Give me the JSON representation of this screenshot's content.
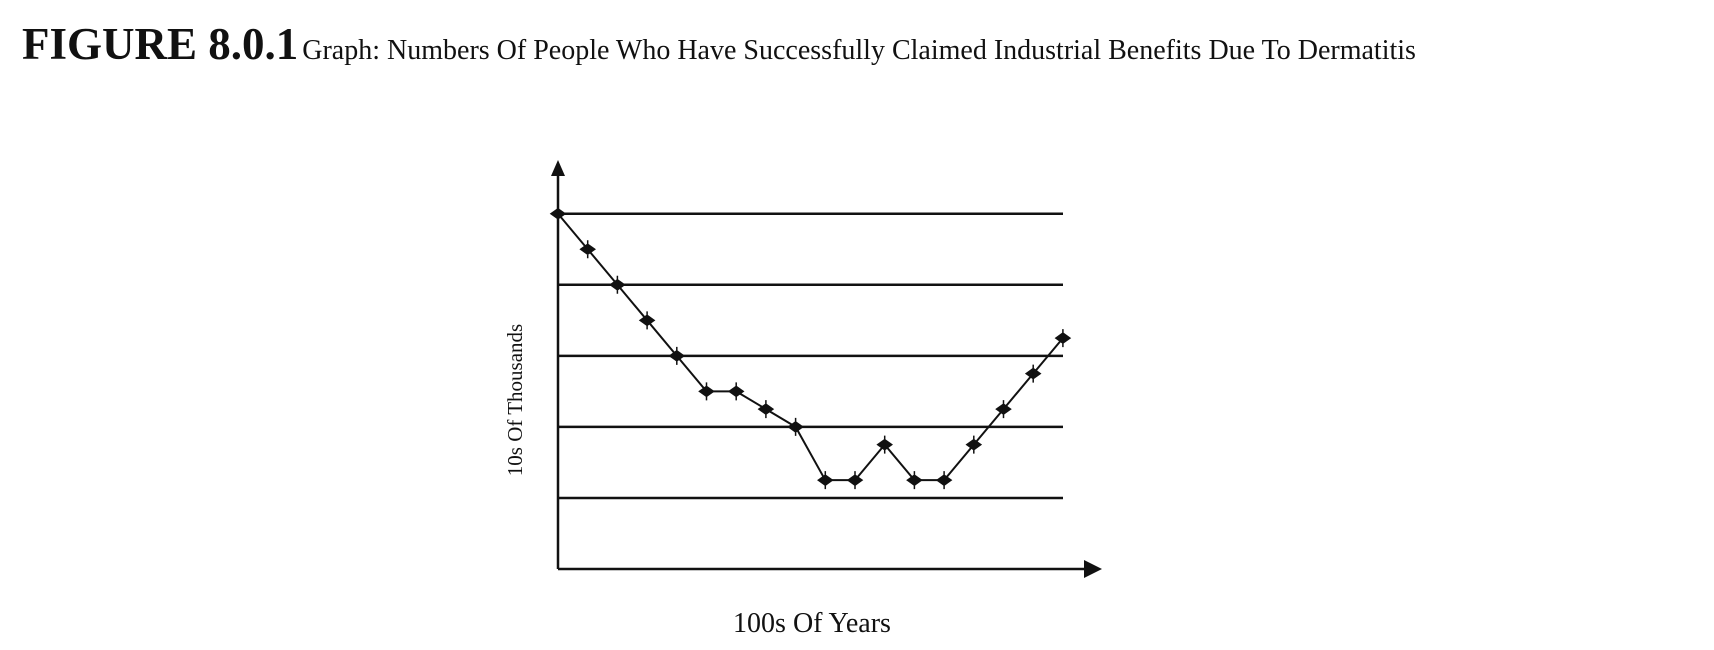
{
  "chart_data": {
    "type": "line",
    "title": "FIGURE 8.0.1",
    "subtitle": "Graph: Numbers Of People Who Have Successfully Claimed Industrial Benefits Due To Dermatitis",
    "y_label": "10s Of Thousands",
    "x_label": "100s Of Years",
    "categories": [
      null,
      null,
      null,
      null,
      null,
      null,
      null,
      null,
      null,
      null,
      null,
      null,
      null,
      null,
      null,
      null,
      null,
      null
    ],
    "values": [
      5,
      4.5,
      4,
      3.5,
      3,
      2.5,
      2.5,
      2.25,
      2,
      1.25,
      1.25,
      1.75,
      1.25,
      1.25,
      1.75,
      2.25,
      2.75,
      3.25
    ],
    "color": "#111111",
    "ylim": [
      0,
      5.7
    ],
    "gridlines": [
      1,
      2,
      3,
      4,
      5
    ]
  }
}
